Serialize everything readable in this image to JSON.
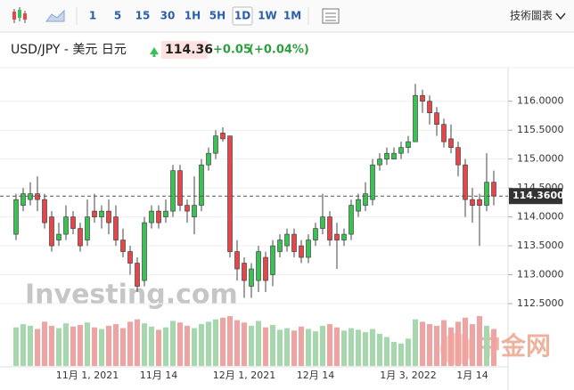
{
  "toolbar": {
    "intervals": [
      "1",
      "5",
      "15",
      "30",
      "1H",
      "5H",
      "1D",
      "1W",
      "1M"
    ],
    "active": "1D",
    "right": "技術圖表"
  },
  "header": {
    "symbol": "USD/JPY - 美元 日元",
    "price": "114.36",
    "change": "+0.05",
    "change_pct": "(+0.04%)"
  },
  "chart_data": {
    "type": "candlestick",
    "watermark": "Investing.com",
    "watermark2": "中金网",
    "up_color": "#3cbf55",
    "down_color": "#e2474c",
    "volume_up_color": "#a6d8ae",
    "volume_down_color": "#f0a3a3",
    "categories": [
      null,
      null,
      null,
      null,
      null,
      null,
      null,
      null,
      null,
      null,
      "11月 1, 2021",
      null,
      null,
      null,
      null,
      null,
      null,
      null,
      null,
      null,
      "11月 14",
      null,
      null,
      null,
      null,
      null,
      null,
      null,
      null,
      null,
      null,
      null,
      "12月 1, 2021",
      null,
      null,
      null,
      null,
      null,
      null,
      null,
      null,
      null,
      "12月 14",
      null,
      null,
      null,
      null,
      null,
      null,
      null,
      null,
      null,
      null,
      null,
      null,
      "1月 3, 2022",
      null,
      null,
      null,
      null,
      null,
      null,
      null,
      null,
      "1月 14",
      null,
      null,
      null
    ],
    "open": [
      113.7,
      114.2,
      114.3,
      114.4,
      114.3,
      114.0,
      113.6,
      113.7,
      114.0,
      113.8,
      113.6,
      114.1,
      114.0,
      114.1,
      114.0,
      113.6,
      113.4,
      113.2,
      112.9,
      113.9,
      114.1,
      114.0,
      114.1,
      114.8,
      114.2,
      114.0,
      114.2,
      114.9,
      115.1,
      115.45,
      115.4,
      113.4,
      113.2,
      112.8,
      112.9,
      113.3,
      113.0,
      113.4,
      113.5,
      113.7,
      113.5,
      113.3,
      113.6,
      113.8,
      114.0,
      113.7,
      113.6,
      113.7,
      114.1,
      114.2,
      114.3,
      114.9,
      115.0,
      115.0,
      115.1,
      115.2,
      115.3,
      116.1,
      116.0,
      115.8,
      115.6,
      115.35,
      115.2,
      114.9,
      114.3,
      114.3,
      114.2,
      114.6
    ],
    "high": [
      114.4,
      114.5,
      114.6,
      114.7,
      114.4,
      114.1,
      113.9,
      114.2,
      114.1,
      113.9,
      114.3,
      114.4,
      114.2,
      114.3,
      114.2,
      113.8,
      113.5,
      113.3,
      114.0,
      114.2,
      114.2,
      114.3,
      114.9,
      114.9,
      114.3,
      114.7,
      115.0,
      115.2,
      115.5,
      115.55,
      115.4,
      113.6,
      113.3,
      113.2,
      113.5,
      113.4,
      113.6,
      113.7,
      113.8,
      113.8,
      113.6,
      113.7,
      113.9,
      114.4,
      114.1,
      113.9,
      113.8,
      114.3,
      114.4,
      114.6,
      115.0,
      115.1,
      115.2,
      115.2,
      115.3,
      115.4,
      116.3,
      116.2,
      116.1,
      115.9,
      115.7,
      115.6,
      115.3,
      115.0,
      114.5,
      114.4,
      115.1,
      114.8
    ],
    "low": [
      113.6,
      114.1,
      114.2,
      114.1,
      113.8,
      113.4,
      113.5,
      113.6,
      113.7,
      113.4,
      113.5,
      113.9,
      113.8,
      113.7,
      113.5,
      113.3,
      113.0,
      112.7,
      112.8,
      113.8,
      113.8,
      113.9,
      114.0,
      114.1,
      113.9,
      113.7,
      114.1,
      114.8,
      115.0,
      115.3,
      113.3,
      112.9,
      112.6,
      112.6,
      112.7,
      112.7,
      112.8,
      113.3,
      113.4,
      113.3,
      113.2,
      113.2,
      113.5,
      113.7,
      113.5,
      113.1,
      113.5,
      113.6,
      114.0,
      114.1,
      114.2,
      114.8,
      114.9,
      115.0,
      115.0,
      115.1,
      115.3,
      115.8,
      115.6,
      115.4,
      115.2,
      115.1,
      114.7,
      114.0,
      113.9,
      113.5,
      114.1,
      114.2
    ],
    "close": [
      114.3,
      114.4,
      114.4,
      114.3,
      113.9,
      113.5,
      113.7,
      114.0,
      113.8,
      113.5,
      114.0,
      114.0,
      114.1,
      113.9,
      113.6,
      113.4,
      113.2,
      112.8,
      113.9,
      114.1,
      113.9,
      114.1,
      114.8,
      114.2,
      114.1,
      114.2,
      114.9,
      115.1,
      115.4,
      115.35,
      113.4,
      113.1,
      112.9,
      113.1,
      113.4,
      112.9,
      113.5,
      113.6,
      113.7,
      113.4,
      113.3,
      113.6,
      113.8,
      114.0,
      113.6,
      113.6,
      113.7,
      114.2,
      114.3,
      114.4,
      114.9,
      115.0,
      115.1,
      115.1,
      115.2,
      115.3,
      116.1,
      116.0,
      115.8,
      115.6,
      115.3,
      115.2,
      114.9,
      114.3,
      114.2,
      114.2,
      114.6,
      114.36
    ],
    "volume": [
      48,
      52,
      50,
      46,
      55,
      50,
      47,
      53,
      49,
      51,
      54,
      48,
      46,
      50,
      52,
      47,
      55,
      58,
      53,
      49,
      45,
      48,
      56,
      54,
      50,
      47,
      52,
      55,
      58,
      60,
      62,
      57,
      54,
      50,
      56,
      48,
      51,
      45,
      47,
      44,
      49,
      46,
      43,
      50,
      52,
      48,
      44,
      47,
      45,
      42,
      46,
      40,
      36,
      30,
      28,
      34,
      58,
      55,
      52,
      50,
      57,
      48,
      55,
      60,
      52,
      62,
      50,
      46
    ],
    "ylim": [
      112.3,
      116.55
    ],
    "yticks": [
      {
        "value": 112.5,
        "label": "112.5000"
      },
      {
        "value": 113.0,
        "label": "113.0000"
      },
      {
        "value": 113.5,
        "label": "113.5000"
      },
      {
        "value": 114.0,
        "label": "114.0000"
      },
      {
        "value": 114.5,
        "label": "114.5000"
      },
      {
        "value": 115.0,
        "label": "115.0000"
      },
      {
        "value": 115.5,
        "label": "115.5000"
      },
      {
        "value": 116.0,
        "label": "116.0000"
      }
    ],
    "current": {
      "value": 114.36,
      "label": "114.3600"
    },
    "grid": true
  }
}
